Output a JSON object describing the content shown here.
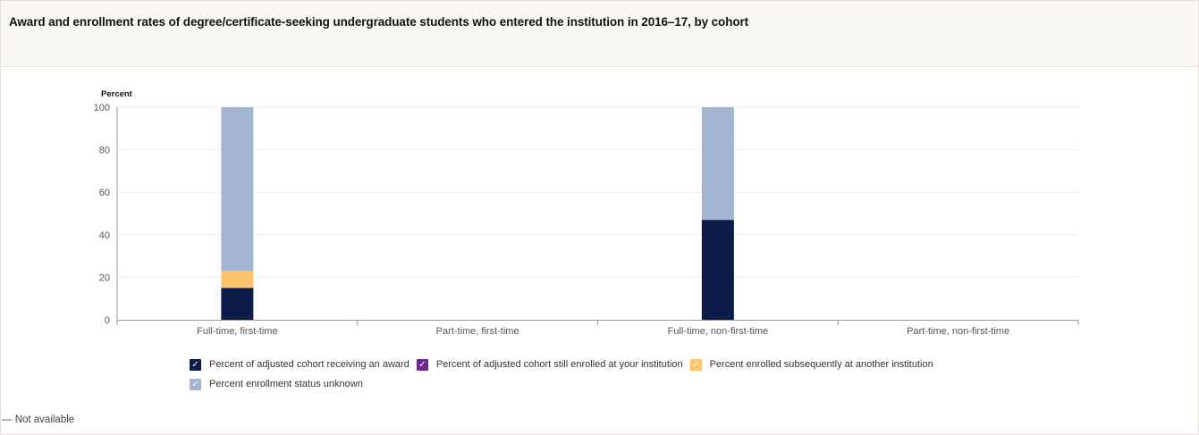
{
  "title": "Award and enrollment rates of degree/certificate-seeking undergraduate students who entered the institution in 2016–17, by cohort",
  "note": "— Not available",
  "chart_data": {
    "type": "bar",
    "stacked": true,
    "ylabel": "Percent",
    "ylim": [
      0,
      100
    ],
    "yticks": [
      0,
      20,
      40,
      60,
      80,
      100
    ],
    "grid": true,
    "legend_position": "bottom",
    "categories": [
      "Full-time, first-time",
      "Part-time, first-time",
      "Full-time, non-first-time",
      "Part-time, non-first-time"
    ],
    "series": [
      {
        "name": "Percent of adjusted cohort receiving an award",
        "color": "#0c1b47",
        "values": [
          15,
          null,
          47,
          null
        ]
      },
      {
        "name": "Percent of adjusted cohort still enrolled at your institution",
        "color": "#6a2a8c",
        "values": [
          0,
          null,
          0,
          null
        ]
      },
      {
        "name": "Percent enrolled subsequently at another institution",
        "color": "#fcc46d",
        "values": [
          8,
          null,
          0,
          null
        ]
      },
      {
        "name": "Percent enrollment status unknown",
        "color": "#a3b5d1",
        "values": [
          77,
          null,
          53,
          null
        ]
      }
    ]
  }
}
